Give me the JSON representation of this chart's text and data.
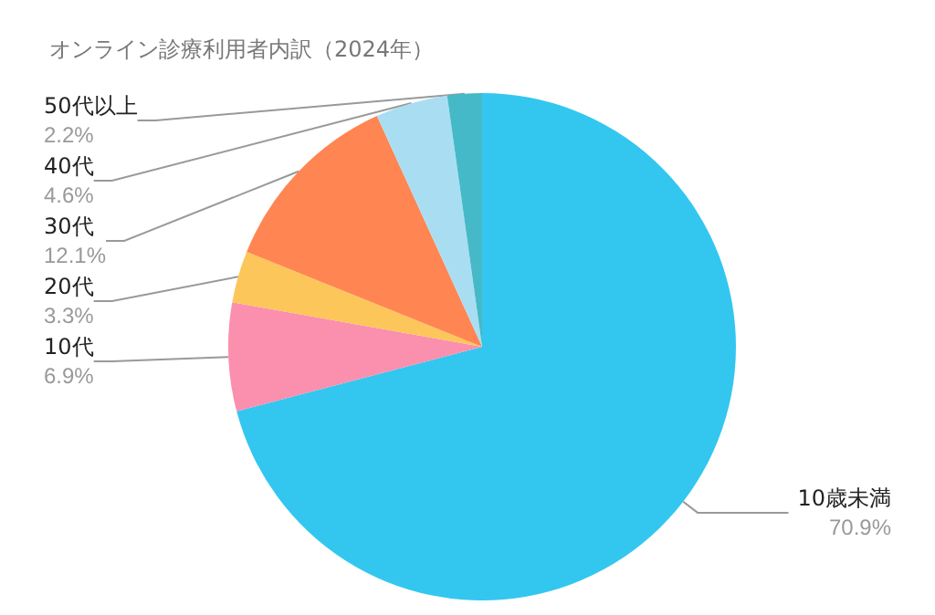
{
  "chart_data": {
    "type": "pie",
    "title": "オンライン診療利用者内訳（2024年）",
    "categories": [
      "10歳未満",
      "10代",
      "20代",
      "30代",
      "40代",
      "50代以上"
    ],
    "values": [
      70.9,
      6.9,
      3.3,
      12.1,
      4.6,
      2.2
    ],
    "colors": [
      "#33c7f0",
      "#fb8fae",
      "#fdc65a",
      "#ff8552",
      "#a9def2",
      "#46b9c8"
    ],
    "value_labels": [
      "70.9%",
      "6.9%",
      "3.3%",
      "12.1%",
      "4.6%",
      "2.2%"
    ],
    "legend": false
  }
}
